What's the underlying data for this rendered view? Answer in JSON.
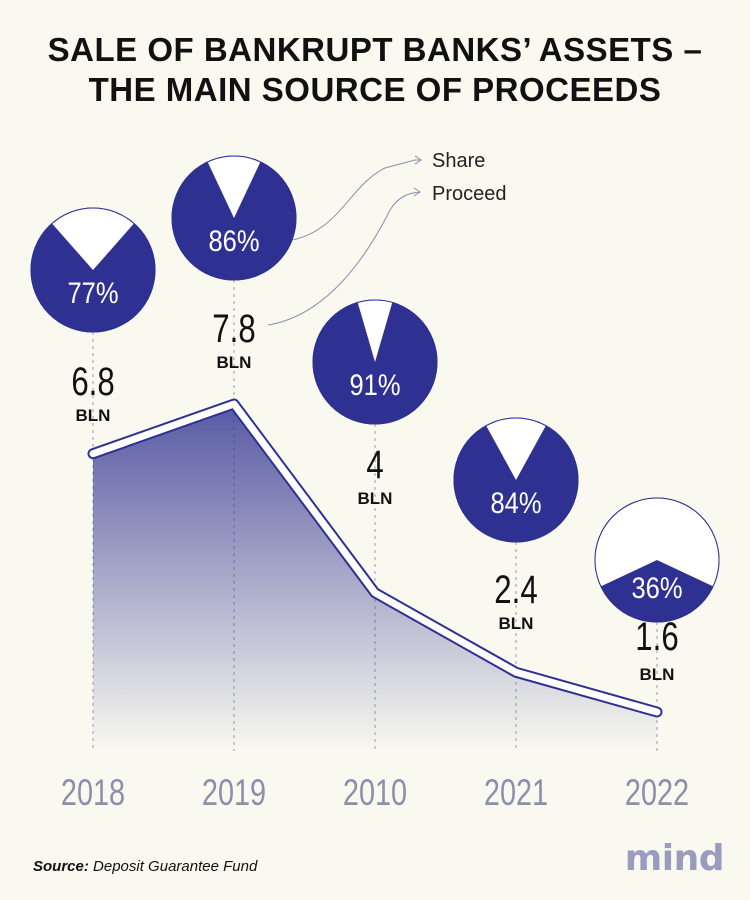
{
  "title": [
    "SALE OF BANKRUPT BANKS’ ASSETS –",
    "THE MAIN SOURCE OF PROCEEDS"
  ],
  "legend": {
    "share_label": "Share",
    "proceed_label": "Proceed"
  },
  "source": {
    "label": "Source:",
    "text": "Deposit Guarantee Fund"
  },
  "logo": "mind",
  "colors": {
    "accent": "#2e3191",
    "background": "#f9f9ef",
    "year_text": "#8c8fab"
  },
  "chart_data": {
    "type": "area",
    "title": "SALE OF BANKRUPT BANKS’ ASSETS – THE MAIN SOURCE OF PROCEEDS",
    "categories": [
      "2018",
      "2019",
      "2010",
      "2021",
      "2022"
    ],
    "series": [
      {
        "name": "Proceed",
        "unit": "BLN",
        "values": [
          6.8,
          7.8,
          4,
          2.4,
          1.6
        ],
        "labels": [
          "6.8",
          "7.8",
          "4",
          "2.4",
          "1.6"
        ]
      },
      {
        "name": "Share",
        "unit": "%",
        "values": [
          77,
          86,
          91,
          84,
          36
        ],
        "labels": [
          "77%",
          "86%",
          "91%",
          "84%",
          "36%"
        ]
      }
    ],
    "unit_label": "BLN",
    "ylim": [
      0,
      8.5
    ]
  }
}
